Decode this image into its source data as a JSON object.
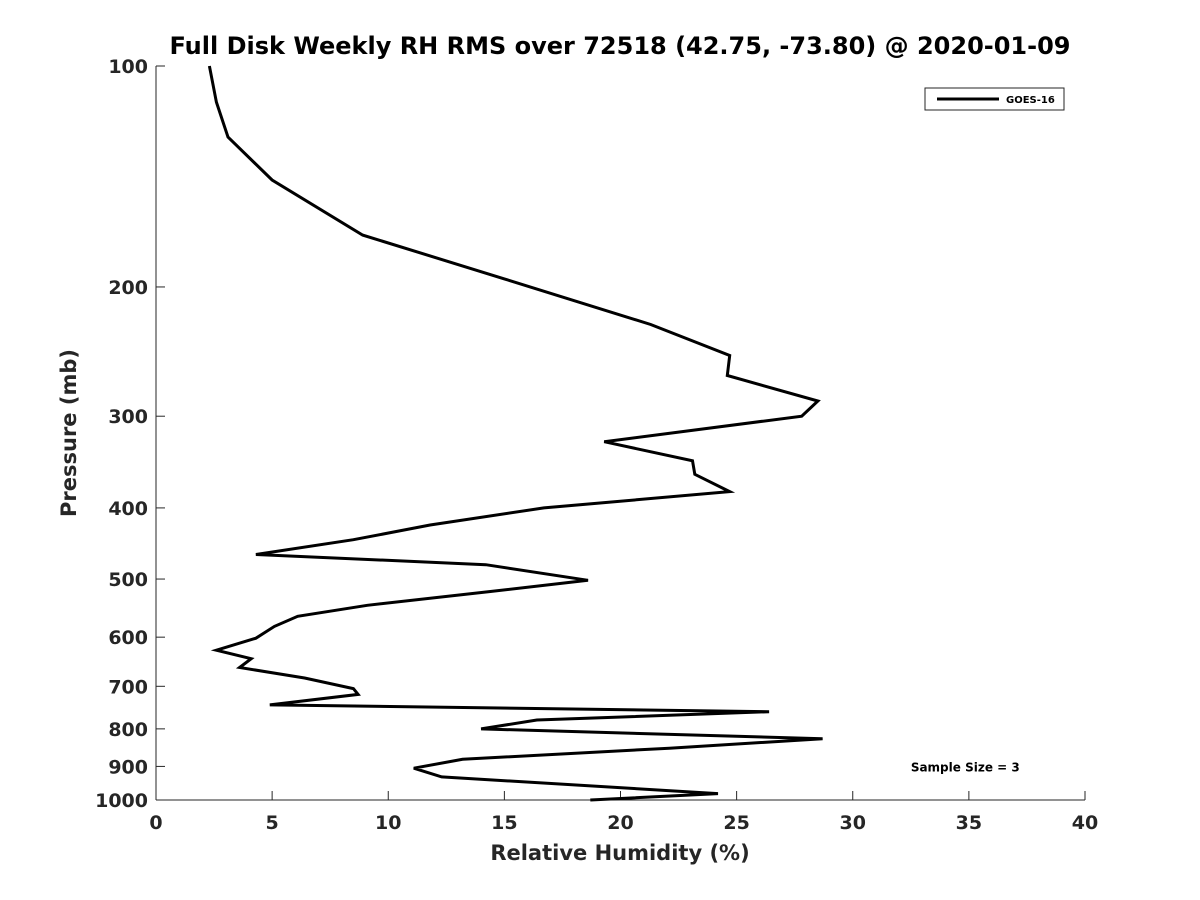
{
  "chart_data": {
    "type": "line",
    "title": "Full Disk Weekly RH RMS over 72518 (42.75, -73.80) @ 2020-01-09",
    "xlabel": "Relative Humidity (%)",
    "ylabel": "Pressure (mb)",
    "xlim": [
      0,
      40
    ],
    "ylim": [
      100,
      1000
    ],
    "yscale": "log",
    "y_reversed": true,
    "x_ticks": [
      0,
      5,
      10,
      15,
      20,
      25,
      30,
      35,
      40
    ],
    "x_tick_labels": [
      "0",
      "5",
      "10",
      "15",
      "20",
      "25",
      "30",
      "35",
      "40"
    ],
    "y_ticks": [
      100,
      200,
      300,
      400,
      500,
      600,
      700,
      800,
      900,
      1000
    ],
    "y_tick_labels": [
      "100",
      "200",
      "300",
      "400",
      "500",
      "600",
      "700",
      "800",
      "900",
      "1000"
    ],
    "grid": false,
    "legend_position": "top-right",
    "series": [
      {
        "name": "GOES-16",
        "color": "#000000",
        "x": [
          2.3,
          2.6,
          3.1,
          5.0,
          8.9,
          15.0,
          21.3,
          24.7,
          24.6,
          28.5,
          27.8,
          19.3,
          23.1,
          23.2,
          24.7,
          16.7,
          11.8,
          8.5,
          4.3,
          14.2,
          18.6,
          14.4,
          9.1,
          6.1,
          5.1,
          4.3,
          2.6,
          4.1,
          3.6,
          6.4,
          8.5,
          8.7,
          4.9,
          26.4,
          16.4,
          14.0,
          28.7,
          22.1,
          13.2,
          11.1,
          12.3,
          24.2,
          18.7
        ],
        "y": [
          100,
          112,
          125,
          143,
          170,
          195,
          225,
          248,
          264,
          286,
          300,
          325,
          345,
          360,
          380,
          400,
          422,
          442,
          463,
          478,
          502,
          520,
          543,
          562,
          580,
          602,
          625,
          642,
          660,
          682,
          705,
          718,
          742,
          758,
          778,
          800,
          825,
          850,
          880,
          905,
          930,
          980,
          1005
        ]
      }
    ],
    "annotations": [
      {
        "text": "Sample Size = 3",
        "x": 32.5,
        "y": 900
      }
    ]
  }
}
